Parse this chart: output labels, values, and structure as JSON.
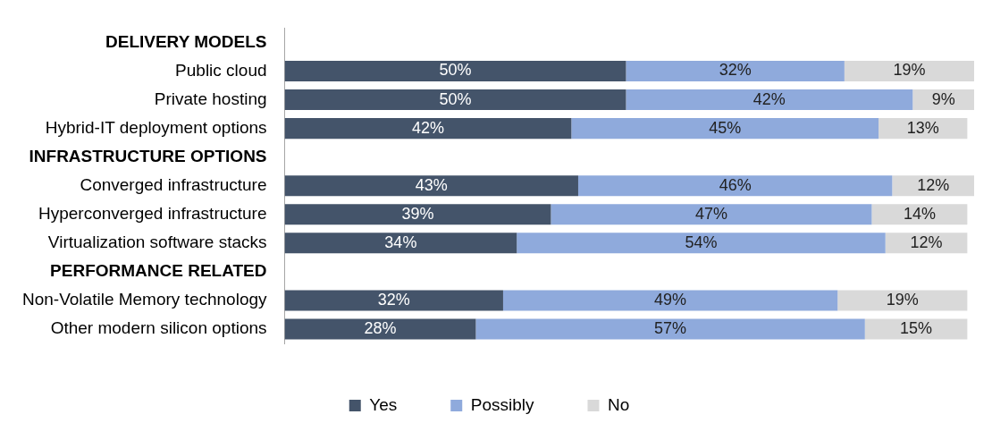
{
  "chart_data": {
    "type": "bar",
    "orientation": "horizontal",
    "stacked": true,
    "legend": "bottom",
    "tick_labels": "y",
    "categories": [
      "DELIVERY MODELS",
      "Public cloud",
      "Private hosting",
      "Hybrid-IT deployment options",
      "INFRASTRUCTURE OPTIONS",
      "Converged infrastructure",
      "Hyperconverged infrastructure",
      "Virtualization software stacks",
      "PERFORMANCE RELATED",
      "Non-Volatile Memory technology",
      "Other modern silicon options"
    ],
    "series": [
      {
        "name": "Yes",
        "color": "#44546a",
        "values": [
          null,
          50,
          50,
          42,
          null,
          43,
          39,
          34,
          null,
          32,
          28
        ],
        "value_labels": [
          null,
          "50%",
          "50%",
          "42%",
          null,
          "43%",
          "39%",
          "34%",
          null,
          "32%",
          "28%"
        ]
      },
      {
        "name": "Possibly",
        "color": "#8faadc",
        "values": [
          null,
          32,
          42,
          45,
          null,
          46,
          47,
          54,
          null,
          49,
          57
        ],
        "value_labels": [
          null,
          "32%",
          "42%",
          "45%",
          null,
          "46%",
          "47%",
          "54%",
          null,
          "49%",
          "57%"
        ]
      },
      {
        "name": "No",
        "color": "#d9d9d9",
        "values": [
          null,
          19,
          9,
          13,
          null,
          12,
          14,
          12,
          null,
          19,
          15
        ],
        "value_labels": [
          null,
          "19%",
          "9%",
          "13%",
          null,
          "12%",
          "14%",
          "12%",
          null,
          "19%",
          "15%"
        ]
      }
    ]
  }
}
